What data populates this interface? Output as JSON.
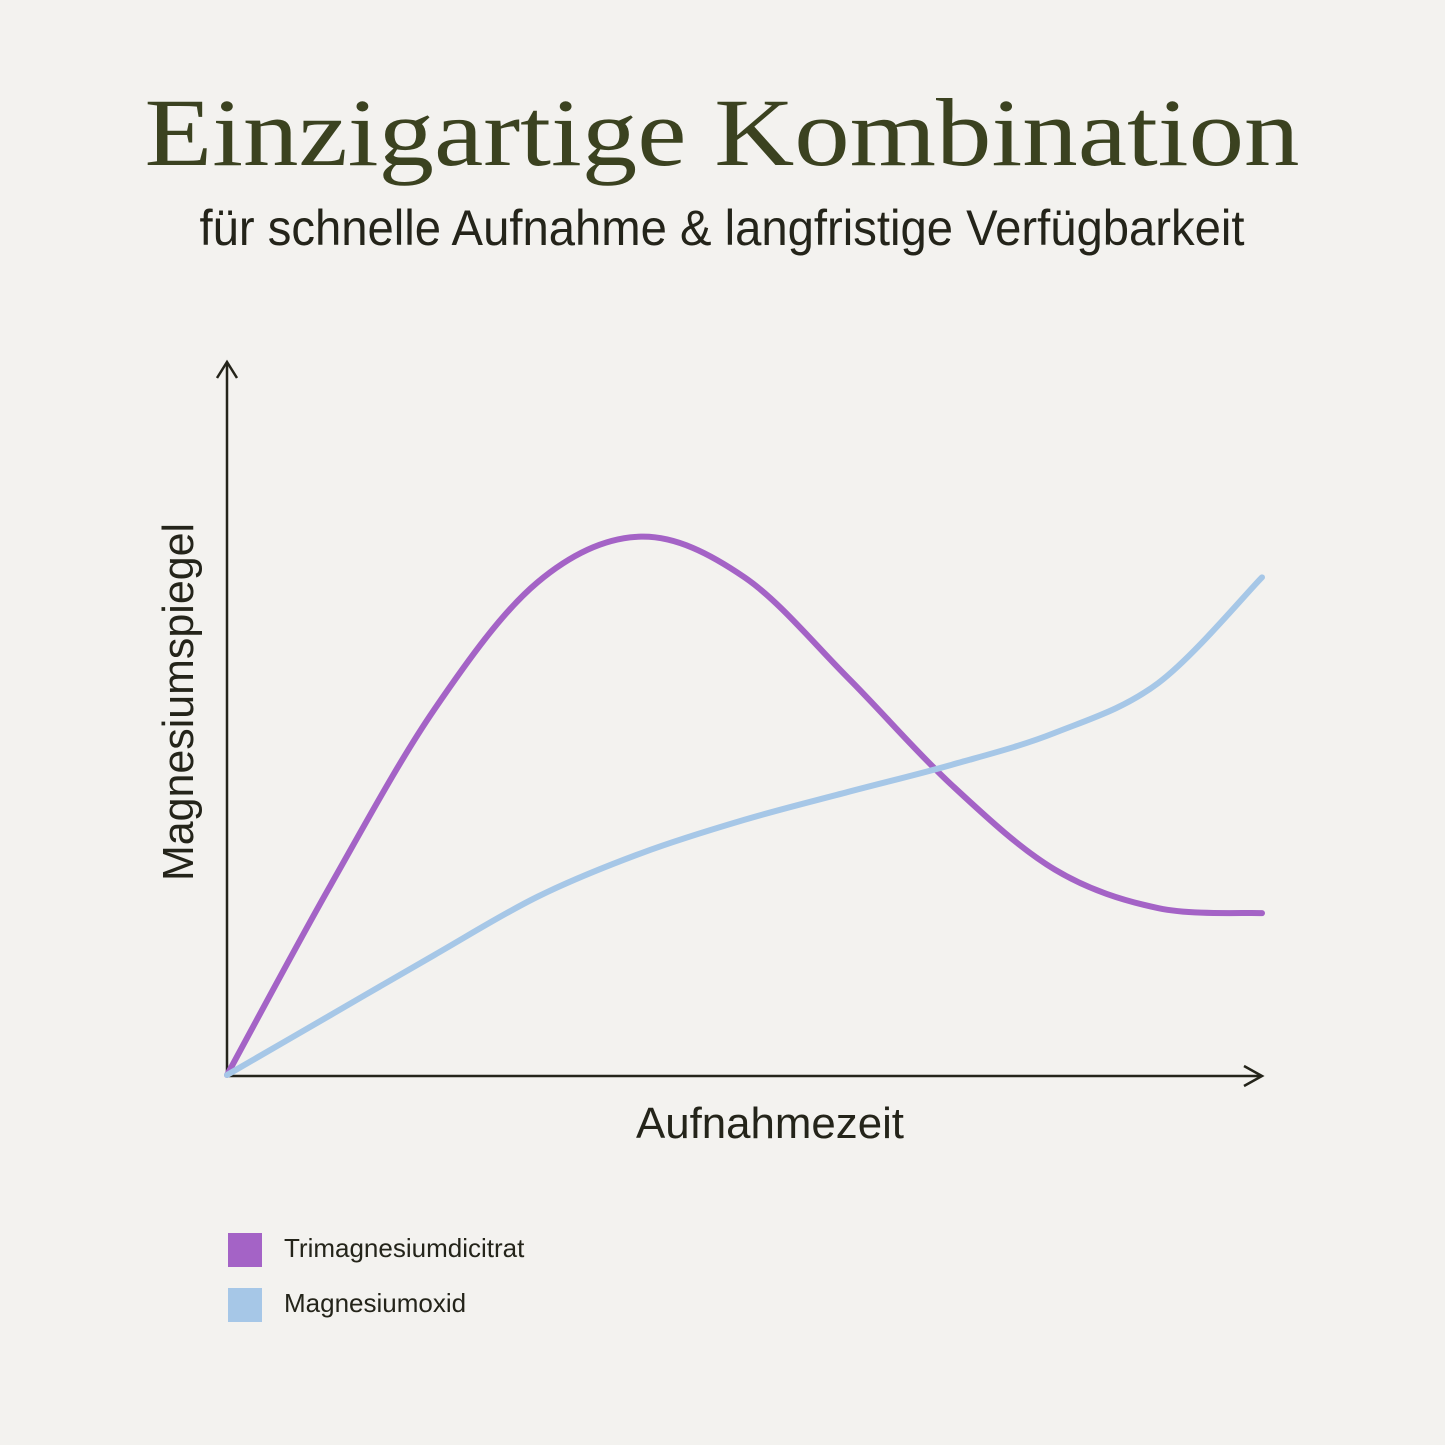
{
  "chart_data": {
    "type": "line",
    "title": "Einzigartige Kombination",
    "subtitle": "für schnelle Aufnahme & langfristige Verfügbarkeit",
    "x_label": "Aufnahmezeit",
    "y_label": "Magnesiumspiegel",
    "x": [
      0,
      10,
      20,
      30,
      40,
      50,
      60,
      70,
      80,
      90,
      100
    ],
    "xlim": [
      0,
      100
    ],
    "ylim": [
      0,
      100
    ],
    "grid": false,
    "series": [
      {
        "name": "Trimagnesiumdicitrat",
        "color": "#a463c6",
        "values": [
          0,
          26.6,
          51.2,
          69.1,
          75.5,
          69.8,
          55.7,
          40.7,
          28.8,
          23.4,
          22.7
        ]
      },
      {
        "name": "Magnesiumoxid",
        "color": "#a6c7e7",
        "values": [
          0,
          8.4,
          16.8,
          25.0,
          31.1,
          35.8,
          39.7,
          43.5,
          48.0,
          55.0,
          69.8
        ]
      }
    ]
  }
}
